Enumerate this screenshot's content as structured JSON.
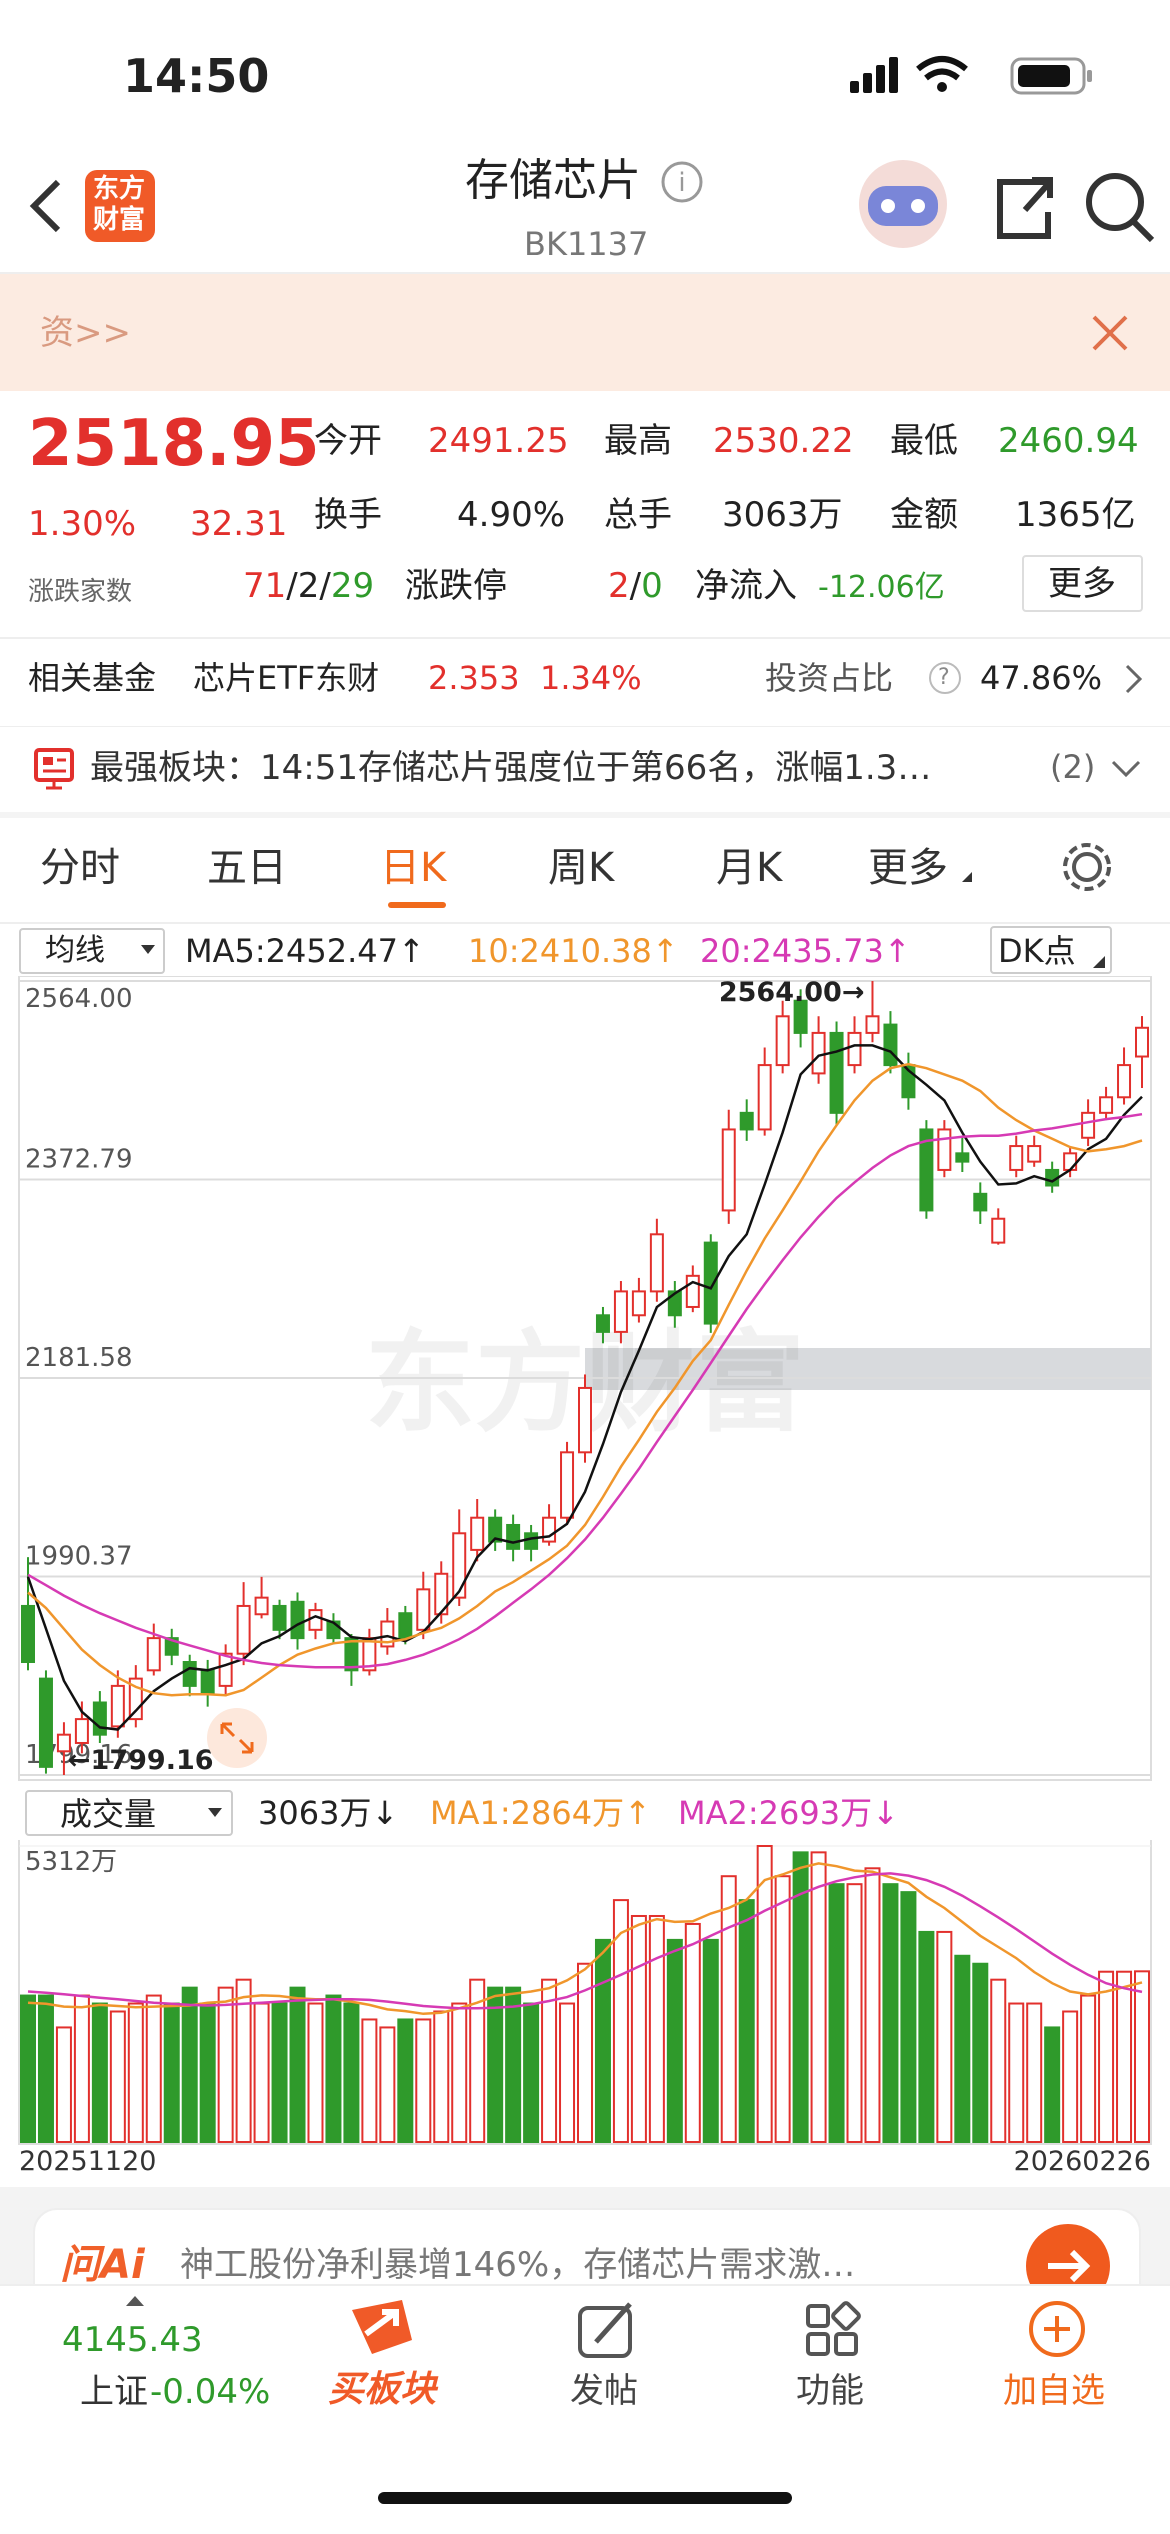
{
  "status": {
    "time": "14:50"
  },
  "header": {
    "logo_line1": "东方",
    "logo_line2": "财富",
    "title": "存储芯片",
    "code": "BK1137"
  },
  "banner": {
    "text": "资>>"
  },
  "quote": {
    "price": "2518.95",
    "change_pct": "1.30%",
    "change": "32.31",
    "fields": [
      {
        "label": "今开",
        "value": "2491.25"
      },
      {
        "label": "最高",
        "value": "2530.22"
      },
      {
        "label": "最低",
        "value": "2460.94"
      },
      {
        "label": "换手",
        "value": "4.90%"
      },
      {
        "label": "总手",
        "value": "3063万"
      },
      {
        "label": "金额",
        "value": "1365亿"
      }
    ],
    "breadth_label": "涨跌家数",
    "breadth_up": "71",
    "breadth_flat": "2",
    "breadth_down": "29",
    "separator": "/",
    "limit_label": "涨跌停",
    "limit_up": "2",
    "limit_down": "0",
    "inflow_label": "净流入",
    "inflow": "-12.06亿",
    "more": "更多"
  },
  "fund": {
    "label": "相关基金",
    "name": "芯片ETF东财",
    "price": "2.353",
    "pct": "1.34%",
    "ratio_label": "投资占比",
    "help": "?",
    "ratio": "47.86%"
  },
  "news": {
    "text": "最强板块：14:51存储芯片强度位于第66名，涨幅1.3…",
    "count": "(2)"
  },
  "tabs": [
    "分时",
    "五日",
    "日K",
    "周K",
    "月K",
    "更多"
  ],
  "watermark": "东方财富",
  "chart_data": [
    {
      "type": "candlestick",
      "indicator": "均线",
      "dk_label": "DK点",
      "high_label": "2564.00→",
      "low_label": "←1799.16",
      "up_color": "#e2302c",
      "down_color": "#2f9a2b",
      "open": [
        1962,
        1892,
        1822,
        1830,
        1869,
        1846,
        1853,
        1900,
        1931,
        1908,
        1900,
        1885,
        1916,
        1954,
        1962,
        1966,
        1939,
        1947,
        1931,
        1900,
        1923,
        1955,
        1939,
        1954,
        1970,
        2016,
        2047,
        2040,
        2032,
        2024,
        2047,
        2110,
        2242,
        2226,
        2242,
        2265,
        2265,
        2250,
        2312,
        2343,
        2437,
        2421,
        2483,
        2545,
        2475,
        2514,
        2483,
        2514,
        2522,
        2483,
        2421,
        2382,
        2398,
        2359,
        2312,
        2382,
        2390,
        2382,
        2382,
        2413,
        2437,
        2452,
        2491.25
      ],
      "high": [
        2009,
        1900,
        1850,
        1870,
        1880,
        1900,
        1905,
        1945,
        1940,
        1915,
        1910,
        1925,
        1985,
        1990,
        1968,
        1975,
        1965,
        1955,
        1935,
        1940,
        1960,
        1962,
        1995,
        2005,
        2055,
        2065,
        2055,
        2050,
        2040,
        2060,
        2120,
        2185,
        2250,
        2275,
        2278,
        2335,
        2275,
        2290,
        2320,
        2440,
        2450,
        2500,
        2545,
        2556,
        2530,
        2525,
        2530,
        2564,
        2535,
        2495,
        2430,
        2430,
        2415,
        2370,
        2345,
        2415,
        2415,
        2390,
        2405,
        2450,
        2462,
        2500,
        2530.22
      ],
      "low": [
        1900,
        1800.5,
        1799.16,
        1820,
        1830,
        1835,
        1845,
        1895,
        1905,
        1875,
        1865,
        1875,
        1905,
        1950,
        1930,
        1920,
        1930,
        1925,
        1885,
        1895,
        1915,
        1925,
        1930,
        1945,
        1962,
        2005,
        2015,
        2005,
        2005,
        2020,
        2040,
        2100,
        2215,
        2215,
        2235,
        2255,
        2230,
        2245,
        2225,
        2330,
        2410,
        2415,
        2475,
        2500,
        2465,
        2425,
        2475,
        2505,
        2475,
        2440,
        2335,
        2375,
        2380,
        2330,
        2310,
        2375,
        2385,
        2360,
        2375,
        2405,
        2430,
        2445,
        2460.94
      ],
      "close": [
        1908,
        1807,
        1838,
        1853,
        1838,
        1885,
        1892,
        1931,
        1915,
        1885,
        1877,
        1916,
        1962,
        1970,
        1939,
        1931,
        1958,
        1931,
        1900,
        1931,
        1947,
        1931,
        1978,
        1993,
        2032,
        2047,
        2024,
        2017,
        2017,
        2047,
        2110,
        2172,
        2226,
        2265,
        2265,
        2320,
        2242,
        2280,
        2234,
        2421,
        2421,
        2483,
        2530,
        2514,
        2514,
        2437,
        2514,
        2530,
        2483,
        2452,
        2343,
        2421,
        2390,
        2343,
        2335,
        2405,
        2405,
        2367,
        2398,
        2437,
        2452,
        2483,
        2518.95
      ],
      "ylim": [
        1799.16,
        2564
      ],
      "yticks": [
        {
          "value": 2564,
          "label": "2564.00"
        },
        {
          "value": 2372.79,
          "label": "2372.79"
        },
        {
          "value": 2181.58,
          "label": "2181.58"
        },
        {
          "value": 1990.37,
          "label": "1990.37"
        },
        {
          "value": 1799.16,
          "label": "1799.16"
        }
      ],
      "grid": true,
      "series": [
        {
          "name": "MA5:2452.47↑",
          "color": "#111111",
          "values": [
            1990,
            1940,
            1890,
            1860,
            1845,
            1843,
            1861,
            1880,
            1892,
            1902,
            1900,
            1905,
            1911,
            1926,
            1933,
            1944,
            1952,
            1946,
            1932,
            1930,
            1933,
            1928,
            1937,
            1956,
            1976,
            2009,
            2027,
            2023,
            2027,
            2029,
            2041,
            2072,
            2118,
            2168,
            2208,
            2250,
            2263,
            2274,
            2268,
            2299,
            2320,
            2368,
            2418,
            2474,
            2492,
            2496,
            2502,
            2502,
            2496,
            2478,
            2464,
            2449,
            2418,
            2390,
            2368,
            2369,
            2376,
            2371,
            2382,
            2402,
            2412,
            2435,
            2452.47
          ]
        },
        {
          "name": "10:2410.38↑",
          "color": "#f0962c",
          "values": [
            1975,
            1960,
            1940,
            1920,
            1905,
            1893,
            1884,
            1878,
            1876,
            1877,
            1877,
            1876,
            1881,
            1893,
            1905,
            1915,
            1921,
            1926,
            1928,
            1928,
            1927,
            1930,
            1936,
            1941,
            1950,
            1962,
            1976,
            1985,
            1996,
            2007,
            2020,
            2040,
            2067,
            2096,
            2122,
            2149,
            2172,
            2198,
            2218,
            2252,
            2285,
            2316,
            2343,
            2371,
            2400,
            2425,
            2449,
            2468,
            2480,
            2484,
            2480,
            2474,
            2468,
            2458,
            2442,
            2430,
            2420,
            2412,
            2404,
            2400,
            2402,
            2405,
            2410.38
          ]
        },
        {
          "name": "20:2435.73↑",
          "color": "#d63ab4",
          "values": [
            1992,
            1982,
            1972,
            1963,
            1955,
            1948,
            1941,
            1935,
            1929,
            1924,
            1919,
            1914,
            1910,
            1907,
            1905,
            1904,
            1903,
            1903,
            1903,
            1904,
            1906,
            1910,
            1915,
            1922,
            1930,
            1940,
            1952,
            1965,
            1978,
            1992,
            2008,
            2026,
            2047,
            2070,
            2094,
            2120,
            2145,
            2170,
            2196,
            2222,
            2248,
            2272,
            2295,
            2317,
            2337,
            2355,
            2370,
            2384,
            2396,
            2405,
            2410,
            2412,
            2414,
            2415,
            2415,
            2417,
            2420,
            2422,
            2425,
            2428,
            2431,
            2433,
            2435.73
          ]
        }
      ]
    },
    {
      "type": "bar",
      "indicator": "成交量",
      "current_label": "3063万↓",
      "categories": [
        "20251120",
        null,
        null,
        null,
        null,
        null,
        null,
        null,
        null,
        null,
        null,
        null,
        null,
        null,
        null,
        null,
        null,
        null,
        null,
        null,
        null,
        null,
        null,
        null,
        null,
        null,
        null,
        null,
        null,
        null,
        null,
        null,
        null,
        null,
        null,
        null,
        null,
        null,
        null,
        null,
        null,
        null,
        null,
        null,
        null,
        null,
        null,
        null,
        null,
        null,
        null,
        null,
        null,
        null,
        null,
        null,
        null,
        null,
        null,
        null,
        null,
        null,
        "20260226"
      ],
      "values": [
        2628,
        2628,
        2056,
        2628,
        2485,
        2342,
        2485,
        2628,
        2485,
        2770,
        2485,
        2770,
        2913,
        2485,
        2485,
        2770,
        2485,
        2628,
        2485,
        2199,
        2056,
        2199,
        2199,
        2342,
        2485,
        2913,
        2770,
        2770,
        2485,
        2913,
        2485,
        3199,
        3627,
        4341,
        4056,
        4056,
        3627,
        3913,
        3627,
        4770,
        4341,
        5312,
        4770,
        5198,
        5198,
        4627,
        4627,
        4912,
        4627,
        4484,
        3770,
        3770,
        3342,
        3199,
        2913,
        2485,
        2485,
        2056,
        2342,
        2628,
        3056,
        3056,
        3063
      ],
      "ylim": [
        0,
        5312
      ],
      "yticks": [
        {
          "value": 5312,
          "label": "5312万"
        }
      ],
      "series": [
        {
          "name": "MA1:2864万↑",
          "color": "#f0962c",
          "values": [
            2500,
            2480,
            2430,
            2420,
            2460,
            2440,
            2420,
            2430,
            2440,
            2450,
            2500,
            2520,
            2600,
            2630,
            2620,
            2580,
            2560,
            2560,
            2520,
            2460,
            2380,
            2350,
            2300,
            2320,
            2400,
            2500,
            2620,
            2660,
            2700,
            2760,
            2900,
            3100,
            3400,
            3750,
            3900,
            4000,
            3950,
            3960,
            4100,
            4200,
            4350,
            4700,
            4800,
            4920,
            5000,
            4950,
            4870,
            4850,
            4750,
            4650,
            4400,
            4200,
            3950,
            3700,
            3500,
            3300,
            3050,
            2850,
            2700,
            2650,
            2700,
            2780,
            2864
          ]
        },
        {
          "name": "MA2:2693万↓",
          "color": "#d63ab4",
          "values": [
            2700,
            2680,
            2650,
            2620,
            2590,
            2560,
            2530,
            2500,
            2480,
            2460,
            2450,
            2460,
            2480,
            2500,
            2520,
            2540,
            2550,
            2560,
            2560,
            2550,
            2520,
            2480,
            2440,
            2420,
            2400,
            2400,
            2410,
            2430,
            2470,
            2530,
            2600,
            2720,
            2860,
            3000,
            3150,
            3300,
            3430,
            3550,
            3700,
            3850,
            3980,
            4150,
            4300,
            4450,
            4580,
            4680,
            4750,
            4800,
            4820,
            4780,
            4700,
            4580,
            4420,
            4230,
            4030,
            3820,
            3600,
            3380,
            3180,
            3000,
            2850,
            2760,
            2693
          ]
        }
      ]
    }
  ],
  "ai": {
    "brand": "问Ai",
    "text": "神工股份净利暴增146%，存储芯片需求激…"
  },
  "bottom": {
    "index_value": "4145.43",
    "index_name": "上证",
    "index_pct": "-0.04%",
    "items": [
      "买板块",
      "发帖",
      "功能",
      "加自选"
    ]
  }
}
